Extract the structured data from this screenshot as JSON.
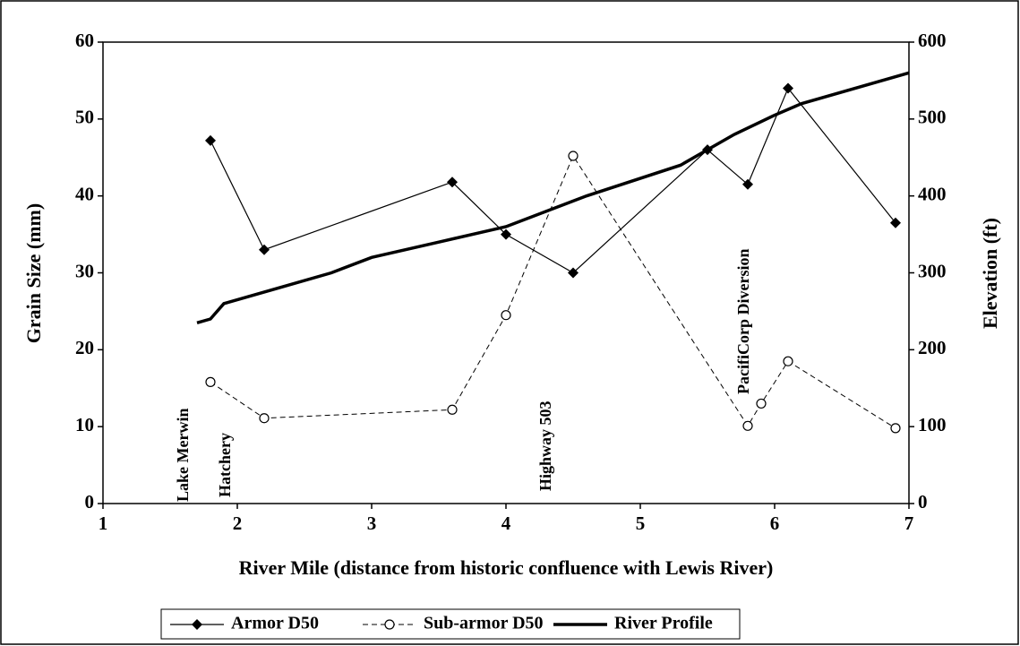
{
  "chart_data": {
    "type": "line",
    "xlabel": "River Mile (distance from historic confluence with Lewis River)",
    "ylabel": "Grain Size (mm)",
    "y2label": "Elevation (ft)",
    "xlim": [
      1,
      7
    ],
    "xticks": [
      1,
      2,
      3,
      4,
      5,
      6,
      7
    ],
    "ylim": [
      0,
      60
    ],
    "yticks": [
      0,
      10,
      20,
      30,
      40,
      50,
      60
    ],
    "y2lim": [
      0,
      600
    ],
    "y2ticks": [
      0,
      100,
      200,
      300,
      400,
      500,
      600
    ],
    "grid": false,
    "legend": "bottom",
    "annotations": [
      "Lake Merwin",
      "Hatchery",
      "Highway 503",
      "PacifiCorp Diversion"
    ],
    "series": [
      {
        "name": "Armor D50",
        "color": "#000000",
        "marker": "diamond",
        "dash": "solid",
        "width": 1.2,
        "x": [
          1.8,
          2.2,
          3.6,
          4.0,
          4.5,
          5.5,
          5.8,
          6.1,
          6.9
        ],
        "values": [
          47.2,
          33,
          41.8,
          35,
          30,
          46,
          41.5,
          54,
          36.5
        ]
      },
      {
        "name": "Sub-armor D50",
        "color": "#000000",
        "marker": "circle",
        "dash": "dashed",
        "width": 1,
        "x": [
          1.8,
          2.2,
          3.6,
          4.0,
          4.5,
          5.8,
          5.9,
          6.1,
          6.9
        ],
        "values": [
          15.8,
          11.1,
          12.2,
          24.5,
          45.2,
          10.1,
          13,
          18.5,
          9.8
        ]
      },
      {
        "name": "River Profile",
        "color": "#000000",
        "marker": "none",
        "dash": "solid",
        "width": 3.5,
        "axis": "y2",
        "x": [
          1.7,
          1.8,
          1.9,
          2.3,
          2.7,
          3.0,
          3.5,
          4.0,
          4.6,
          5.3,
          5.5,
          5.7,
          6.0,
          6.2,
          7.0
        ],
        "values": [
          235,
          240,
          260,
          280,
          300,
          320,
          340,
          360,
          400,
          440,
          460,
          480,
          505,
          520,
          560
        ]
      }
    ]
  }
}
